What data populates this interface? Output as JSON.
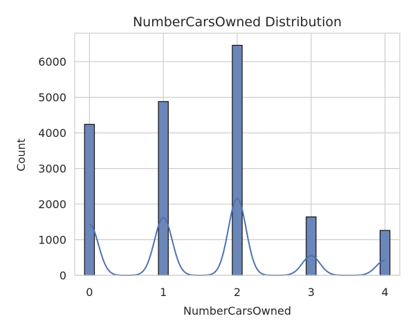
{
  "chart_data": {
    "type": "bar",
    "title": "NumberCarsOwned Distribution",
    "xlabel": "NumberCarsOwned",
    "ylabel": "Count",
    "xlim": [
      -0.2,
      4.2
    ],
    "ylim": [
      0,
      6800
    ],
    "xticks": [
      0,
      1,
      2,
      3,
      4
    ],
    "yticks": [
      0,
      1000,
      2000,
      3000,
      4000,
      5000,
      6000
    ],
    "grid": true,
    "bar_color": "#6b86b8",
    "line_color": "#4c72b0",
    "bins": [
      {
        "x": 0,
        "value": 4240
      },
      {
        "x": 1,
        "value": 4880
      },
      {
        "x": 2,
        "value": 6460
      },
      {
        "x": 3,
        "value": 1640
      },
      {
        "x": 4,
        "value": 1260
      }
    ],
    "bin_width": 0.13333,
    "kde": {
      "bandwidth": 0.12,
      "peaks": [
        {
          "x": 0,
          "value": 1440
        },
        {
          "x": 1,
          "value": 1620
        },
        {
          "x": 2,
          "value": 2160
        },
        {
          "x": 3,
          "value": 550
        },
        {
          "x": 4,
          "value": 420
        }
      ]
    }
  }
}
